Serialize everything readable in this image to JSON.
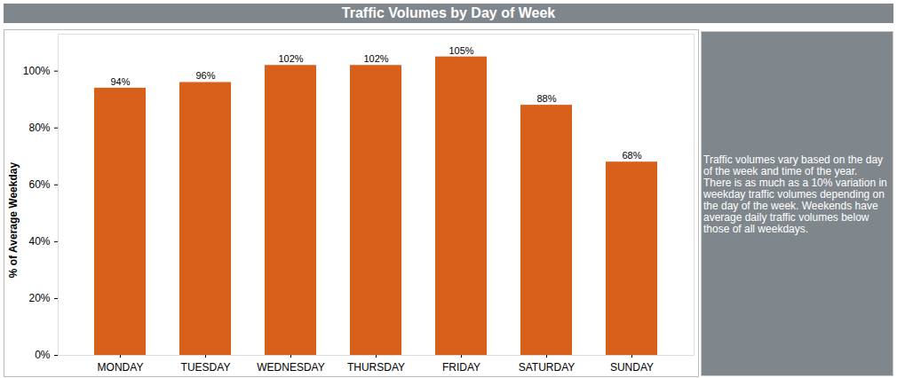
{
  "chart_data": {
    "type": "bar",
    "title": "Traffic Volumes by Day of Week",
    "categories": [
      "MONDAY",
      "TUESDAY",
      "WEDNESDAY",
      "THURSDAY",
      "FRIDAY",
      "SATURDAY",
      "SUNDAY"
    ],
    "values": [
      94,
      96,
      102,
      102,
      105,
      88,
      68
    ],
    "value_labels": [
      "94%",
      "96%",
      "102%",
      "102%",
      "105%",
      "88%",
      "68%"
    ],
    "color": "#d9601a",
    "ylabel": "% of Average Weekday",
    "ylim": [
      0,
      113
    ],
    "yticks": [
      {
        "value": 0,
        "label": "0%"
      },
      {
        "value": 20,
        "label": "20%"
      },
      {
        "value": 40,
        "label": "40%"
      },
      {
        "value": 60,
        "label": "60%"
      },
      {
        "value": 80,
        "label": "80%"
      },
      {
        "value": 100,
        "label": "100%"
      }
    ],
    "grid": false,
    "data_labels": true,
    "annotation": "Traffic volumes vary based on the day of the week and time of the year. There is as much as a 10% variation in weekday traffic volumes depending on the day of the week. Weekends have average daily traffic volumes below those of all weekdays."
  }
}
